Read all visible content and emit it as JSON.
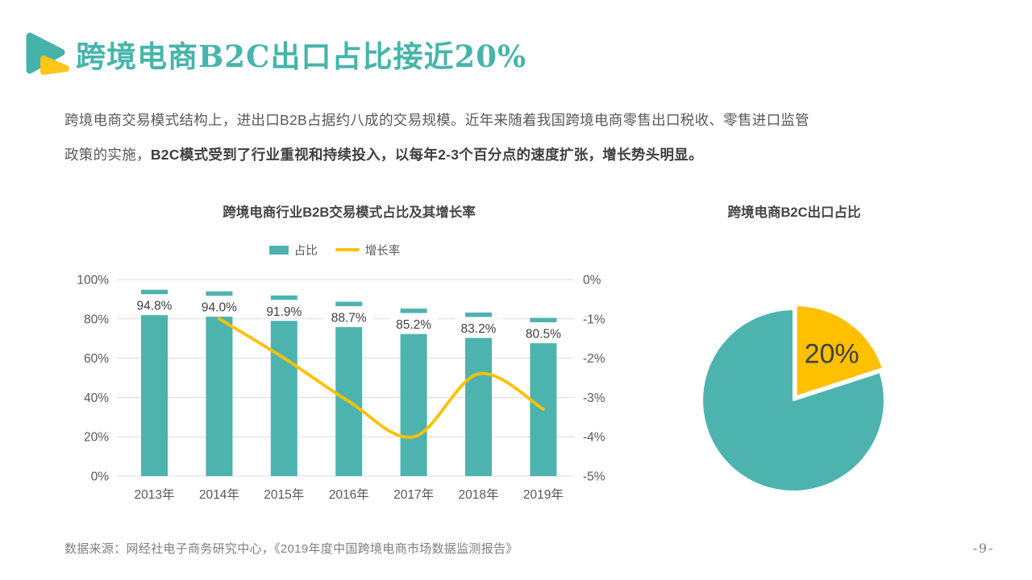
{
  "slide": {
    "title": "跨境电商B2C出口占比接近20%",
    "paragraph": {
      "line1": "跨境电商交易模式结构上，进出口B2B占据约八成的交易规模。近年来随着我国跨境电商零售出口税收、零售进口监管",
      "line2_normal": "政策的实施，",
      "line2_bold": "B2C模式受到了行业重视和持续投入，以每年2-3个百分点的速度扩张，增长势头明显。"
    },
    "footer_source": "数据来源：网经社电子商务研究中心，《2019年度中国跨境电商市场数据监测报告》",
    "page_number": "-9-"
  },
  "colors": {
    "teal": "#4DB3AE",
    "title_teal": "#46B5AB",
    "yellow": "#FFC000",
    "icon_teal": "#45B3AA",
    "icon_yellow": "#FFC517",
    "text_dark": "#404040",
    "text_mid": "#595959",
    "text_light": "#7F7F7F",
    "gridline": "#DCDCDC",
    "white": "#FFFFFF"
  },
  "chart_data": [
    {
      "type": "bar",
      "subtype": "bar+line-combo",
      "title": "跨境电商行业B2B交易模式占比及其增长率",
      "categories": [
        "2013年",
        "2014年",
        "2015年",
        "2016年",
        "2017年",
        "2018年",
        "2019年"
      ],
      "series": [
        {
          "name": "占比",
          "type": "bar",
          "axis": "left",
          "color": "#4DB3AE",
          "values": [
            94.8,
            94.0,
            91.9,
            88.7,
            85.2,
            83.2,
            80.5
          ],
          "labels": [
            "94.8%",
            "94.0%",
            "91.9%",
            "88.7%",
            "85.2%",
            "83.2%",
            "80.5%"
          ]
        },
        {
          "name": "增长率",
          "type": "line",
          "axis": "right",
          "color": "#FFC000",
          "values": [
            null,
            -1.0,
            -2.0,
            -3.1,
            -4.0,
            -2.4,
            -3.3
          ]
        }
      ],
      "left_axis": {
        "ticks": [
          "100%",
          "80%",
          "60%",
          "40%",
          "20%",
          "0%"
        ],
        "max": 100,
        "min": 0
      },
      "right_axis": {
        "ticks": [
          "0%",
          "-1%",
          "-2%",
          "-3%",
          "-4%",
          "-5%"
        ],
        "max": 0,
        "min": -5
      },
      "legend_position": "top",
      "grid": true
    },
    {
      "type": "pie",
      "title": "跨境电商B2C出口占比",
      "slices": [
        {
          "label": "20%",
          "value": 20,
          "color": "#FFC000",
          "exploded": true
        },
        {
          "label": "",
          "value": 80,
          "color": "#4DB3AE",
          "exploded": false
        }
      ],
      "start_angle_deg": 0,
      "legend_position": "none"
    }
  ]
}
